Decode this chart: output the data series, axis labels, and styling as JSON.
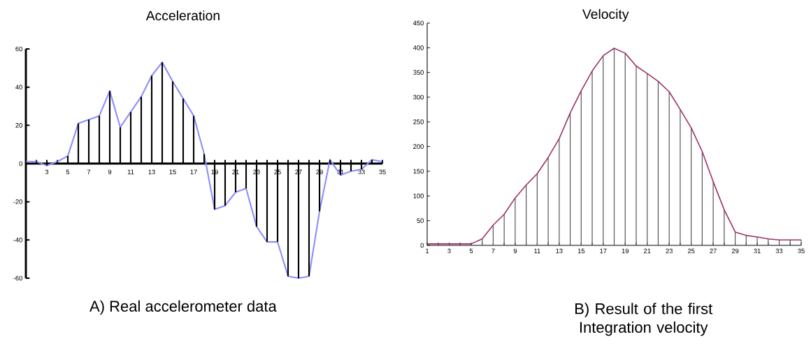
{
  "chart_data": [
    {
      "type": "bar",
      "title": "Acceleration",
      "x": [
        1,
        2,
        3,
        4,
        5,
        6,
        7,
        8,
        9,
        10,
        11,
        12,
        13,
        14,
        15,
        16,
        17,
        18,
        19,
        20,
        21,
        22,
        23,
        24,
        25,
        26,
        27,
        28,
        29,
        30,
        31,
        32,
        33,
        34,
        35
      ],
      "series": [
        {
          "type": "line",
          "color": "#8f8fff",
          "values": [
            1,
            1,
            -1,
            1,
            4,
            21,
            23,
            25,
            38,
            19,
            27,
            35,
            46,
            53,
            43,
            34,
            25,
            5,
            -24,
            -22,
            -15,
            -13,
            -33,
            -41,
            -41,
            -59,
            -60,
            -59,
            -25,
            2,
            -6,
            -4,
            -3,
            2,
            1
          ]
        },
        {
          "color": "#000000",
          "values": [
            1,
            1,
            -1,
            1,
            4,
            21,
            23,
            25,
            38,
            19,
            27,
            35,
            46,
            53,
            43,
            34,
            25,
            5,
            -24,
            -22,
            -15,
            -13,
            -33,
            -41,
            -41,
            -59,
            -60,
            -59,
            -25,
            2,
            -6,
            -4,
            -3,
            2,
            1
          ]
        }
      ],
      "xlim": [
        1,
        35
      ],
      "ylim": [
        -60,
        60
      ],
      "xticks": [
        {
          "value": 2,
          "label": null
        },
        3,
        {
          "value": 4,
          "label": null
        },
        5,
        {
          "value": 6,
          "label": null
        },
        7,
        {
          "value": 8,
          "label": null
        },
        9,
        {
          "value": 10,
          "label": null
        },
        11,
        {
          "value": 12,
          "label": null
        },
        13,
        {
          "value": 14,
          "label": null
        },
        15,
        {
          "value": 16,
          "label": null
        },
        17,
        {
          "value": 18,
          "label": null
        },
        19,
        {
          "value": 20,
          "label": null
        },
        21,
        {
          "value": 22,
          "label": null
        },
        23,
        {
          "value": 24,
          "label": null
        },
        25,
        {
          "value": 26,
          "label": null
        },
        27,
        {
          "value": 28,
          "label": null
        },
        29,
        {
          "value": 30,
          "label": null
        },
        31,
        {
          "value": 32,
          "label": null
        },
        33,
        {
          "value": 34,
          "label": null
        },
        35
      ],
      "yticks": [
        -60,
        -40,
        -20,
        0,
        20,
        40,
        60
      ],
      "annotations": [
        "A) Real accelerometer data"
      ]
    },
    {
      "type": "bar",
      "title": "Velocity",
      "x": [
        1,
        2,
        3,
        4,
        5,
        6,
        7,
        8,
        9,
        10,
        11,
        12,
        13,
        14,
        15,
        16,
        17,
        18,
        19,
        20,
        21,
        22,
        23,
        24,
        25,
        26,
        27,
        28,
        29,
        30,
        31,
        32,
        33,
        34,
        35
      ],
      "series": [
        {
          "type": "line",
          "color": "#a0306a",
          "values": [
            3,
            3,
            3,
            3,
            3,
            13,
            41,
            63,
            96,
            122,
            145,
            178,
            216,
            268,
            313,
            353,
            384,
            399,
            389,
            363,
            348,
            332,
            311,
            275,
            238,
            190,
            129,
            72,
            27,
            20,
            17,
            13,
            11,
            11,
            11
          ]
        },
        {
          "color": "#555555",
          "values": [
            3,
            3,
            3,
            3,
            3,
            13,
            41,
            63,
            96,
            122,
            145,
            178,
            216,
            268,
            313,
            353,
            384,
            399,
            389,
            363,
            348,
            332,
            311,
            275,
            238,
            190,
            129,
            72,
            27,
            20,
            17,
            13,
            11,
            11,
            11
          ]
        }
      ],
      "xlim": [
        1,
        35
      ],
      "ylim": [
        0,
        450
      ],
      "xticks": [
        1,
        {
          "value": 2,
          "label": null
        },
        3,
        {
          "value": 4,
          "label": null
        },
        5,
        {
          "value": 6,
          "label": null
        },
        7,
        {
          "value": 8,
          "label": null
        },
        9,
        {
          "value": 10,
          "label": null
        },
        11,
        {
          "value": 12,
          "label": null
        },
        13,
        {
          "value": 14,
          "label": null
        },
        15,
        {
          "value": 16,
          "label": null
        },
        17,
        {
          "value": 18,
          "label": null
        },
        19,
        {
          "value": 20,
          "label": null
        },
        21,
        {
          "value": 22,
          "label": null
        },
        23,
        {
          "value": 24,
          "label": null
        },
        25,
        {
          "value": 26,
          "label": null
        },
        27,
        {
          "value": 28,
          "label": null
        },
        29,
        {
          "value": 30,
          "label": null
        },
        31,
        {
          "value": 32,
          "label": null
        },
        33,
        {
          "value": 34,
          "label": null
        },
        35
      ],
      "yticks": [
        0,
        50,
        100,
        150,
        200,
        250,
        300,
        350,
        400,
        450
      ],
      "annotations": [
        "B) Result of the first Integration velocity"
      ]
    }
  ]
}
